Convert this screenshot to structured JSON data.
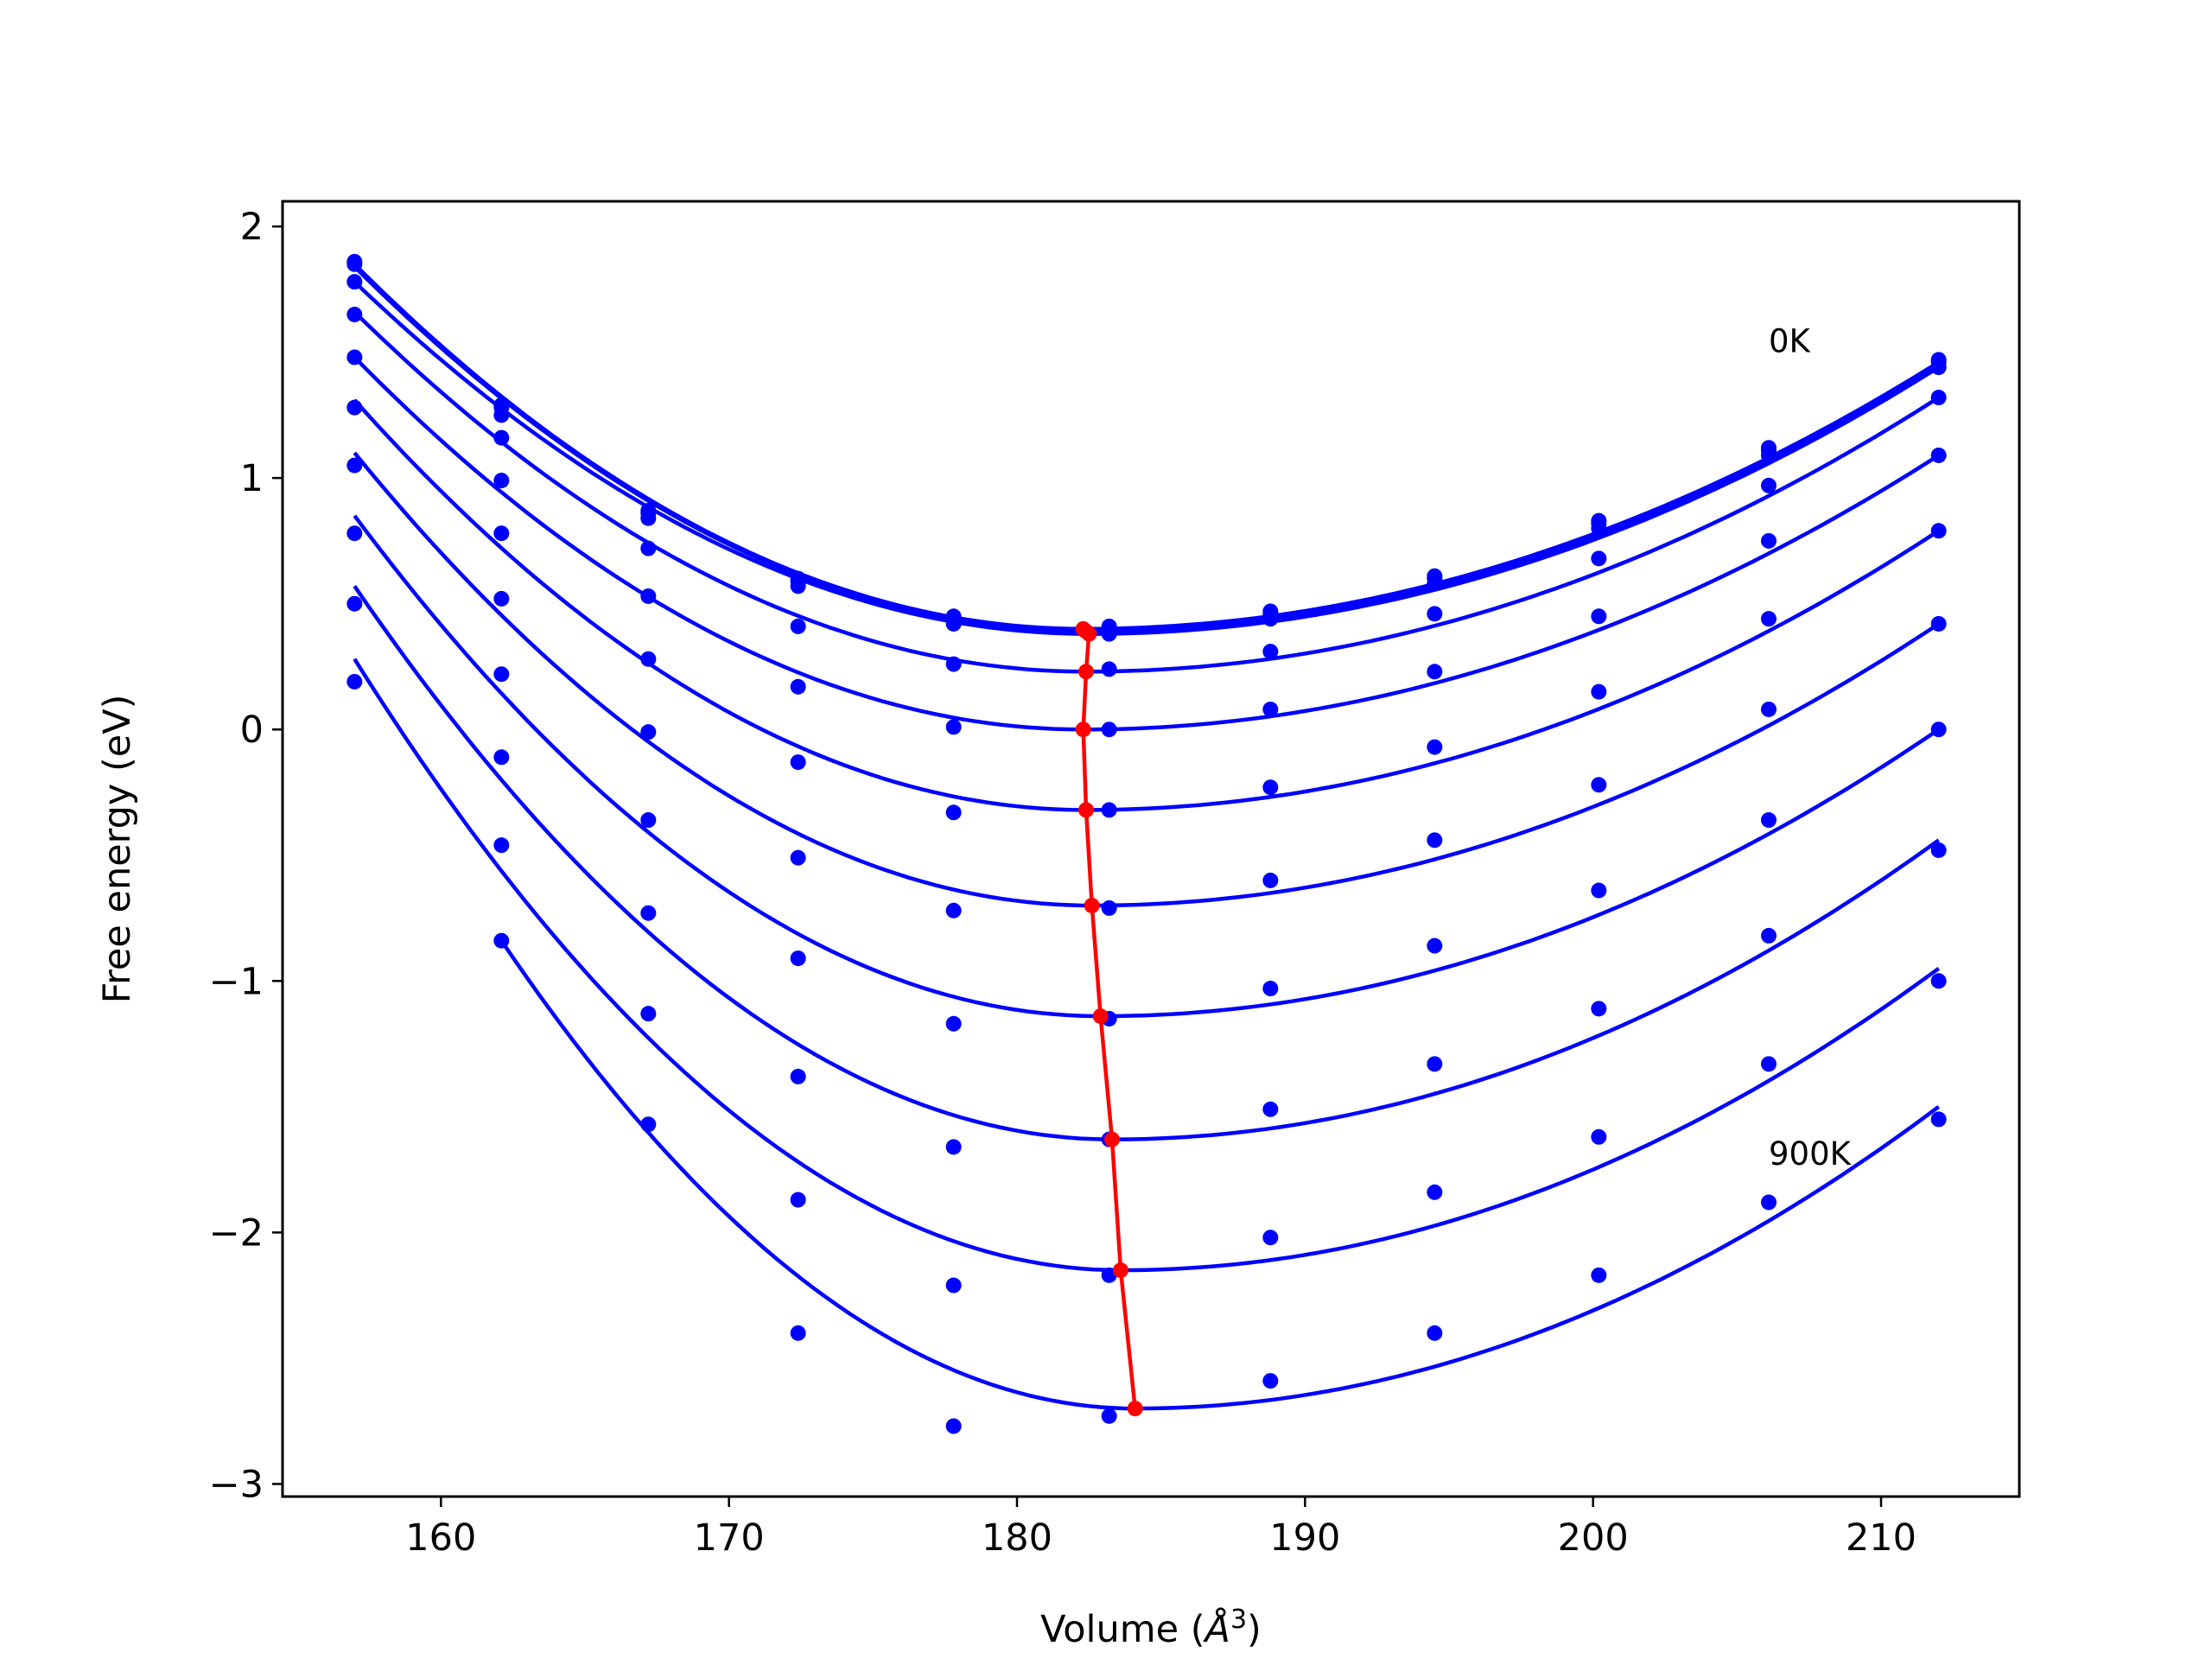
{
  "chart_data": {
    "type": "line",
    "xlabel": "Volume (Å³)",
    "xlabel_parts": {
      "main": "Volume (",
      "unit_base": "Å",
      "unit_exp": "3",
      "close": ")"
    },
    "ylabel": "Free energy (eV)",
    "xlim": [
      154.5,
      214.8
    ],
    "ylim": [
      -3.05,
      2.1
    ],
    "xticks": [
      160,
      170,
      180,
      190,
      200,
      210
    ],
    "xtick_labels": [
      "160",
      "170",
      "180",
      "190",
      "200",
      "210"
    ],
    "yticks": [
      -3,
      -2,
      -1,
      0,
      1,
      2
    ],
    "ytick_labels": [
      "−3",
      "−2",
      "−1",
      "0",
      "1",
      "2"
    ],
    "grid": false,
    "annotations": [
      {
        "text": "0K",
        "x": 206.1,
        "y": 1.5
      },
      {
        "text": "900K",
        "x": 206.1,
        "y": -1.73
      }
    ],
    "colors": {
      "curves": "#0000ff",
      "minima": "#ff0000",
      "axes": "#000000"
    },
    "volumes": [
      157.0,
      162.1,
      167.2,
      172.4,
      177.8,
      183.2,
      188.8,
      194.5,
      200.2,
      206.1,
      212.0
    ],
    "series": [
      {
        "label": "0K",
        "points": [
          1.86,
          1.29,
          0.87,
          0.6,
          0.45,
          0.41,
          0.47,
          0.61,
          0.83,
          1.12,
          1.47
        ],
        "fit": [
          1.85,
          0.4,
          182.3,
          1.46
        ]
      },
      {
        "points": [
          1.85,
          1.28,
          0.86,
          0.59,
          0.44,
          0.4,
          0.46,
          0.6,
          0.82,
          1.11,
          1.46
        ],
        "fit": [
          1.84,
          0.39,
          182.4,
          1.45
        ]
      },
      {
        "points": [
          1.78,
          1.25,
          0.84,
          0.57,
          0.42,
          0.38,
          0.44,
          0.58,
          0.8,
          1.09,
          1.44
        ],
        "fit": [
          1.78,
          0.38,
          182.5,
          1.44
        ]
      },
      {
        "points": [
          1.65,
          1.16,
          0.72,
          0.41,
          0.26,
          0.24,
          0.31,
          0.46,
          0.68,
          0.97,
          1.32
        ],
        "fit": [
          1.66,
          0.23,
          182.4,
          1.32
        ]
      },
      {
        "points": [
          1.48,
          0.99,
          0.53,
          0.17,
          0.01,
          0.0,
          0.08,
          0.23,
          0.45,
          0.75,
          1.09
        ],
        "fit": [
          1.48,
          0.0,
          182.3,
          1.09
        ]
      },
      {
        "points": [
          1.28,
          0.78,
          0.28,
          -0.13,
          -0.33,
          -0.32,
          -0.23,
          -0.07,
          0.15,
          0.44,
          0.79
        ],
        "fit": [
          1.31,
          -0.32,
          182.4,
          0.79
        ]
      },
      {
        "points": [
          1.05,
          0.52,
          -0.01,
          -0.51,
          -0.72,
          -0.71,
          -0.6,
          -0.44,
          -0.22,
          0.08,
          0.42
        ],
        "fit": [
          1.1,
          -0.7,
          182.6,
          0.42
        ]
      },
      {
        "points": [
          0.78,
          0.22,
          -0.36,
          -0.91,
          -1.17,
          -1.15,
          -1.03,
          -0.86,
          -0.64,
          -0.36,
          0.0
        ],
        "fit": [
          0.85,
          -1.14,
          182.9,
          0.0
        ]
      },
      {
        "points": [
          0.5,
          -0.11,
          -0.73,
          -1.38,
          -1.66,
          -1.63,
          -1.51,
          -1.33,
          -1.11,
          -0.82,
          -0.48
        ],
        "fit": [
          0.57,
          -1.63,
          183.3,
          -0.44
        ]
      },
      {
        "points": [
          0.19,
          -0.46,
          -1.13,
          -1.87,
          -2.21,
          -2.17,
          -2.02,
          -1.84,
          -1.62,
          -1.33,
          -1.0
        ],
        "fit": [
          0.28,
          -2.15,
          183.6,
          -0.95
        ]
      },
      {
        "label": "900K",
        "points": [
          -0.84,
          -1.57,
          -2.4,
          -2.77,
          -2.73,
          -2.59,
          -2.4,
          -2.17,
          -1.88,
          -1.55
        ],
        "x_start_index": 1,
        "fit": [
          -0.84,
          -2.7,
          184.1,
          -1.5
        ],
        "fit_x_start": 162.1
      }
    ],
    "minima_line": {
      "x": [
        184.1,
        183.6,
        183.3,
        182.9,
        182.6,
        182.4,
        182.3,
        182.4,
        182.5,
        182.4,
        182.3
      ],
      "y": [
        -2.7,
        -2.15,
        -1.63,
        -1.14,
        -0.7,
        -0.32,
        0.0,
        0.23,
        0.38,
        0.39,
        0.4
      ]
    }
  }
}
